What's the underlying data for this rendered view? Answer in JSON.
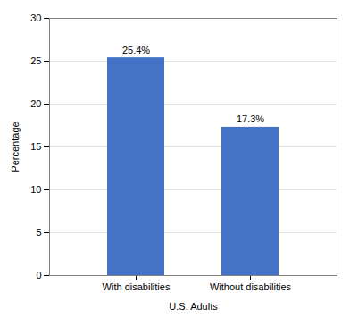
{
  "chart_data": {
    "type": "bar",
    "categories": [
      "With disabilities",
      "Without disabilities"
    ],
    "values": [
      25.4,
      17.3
    ],
    "value_labels": [
      "25.4%",
      "17.3%"
    ],
    "data_labels": true,
    "color": "#4472C4",
    "xlabel": "U.S. Adults",
    "ylabel": "Percentage",
    "ylim": [
      0,
      30
    ],
    "yticks": [
      0,
      5,
      10,
      15,
      20,
      25,
      30
    ],
    "grid": true
  }
}
